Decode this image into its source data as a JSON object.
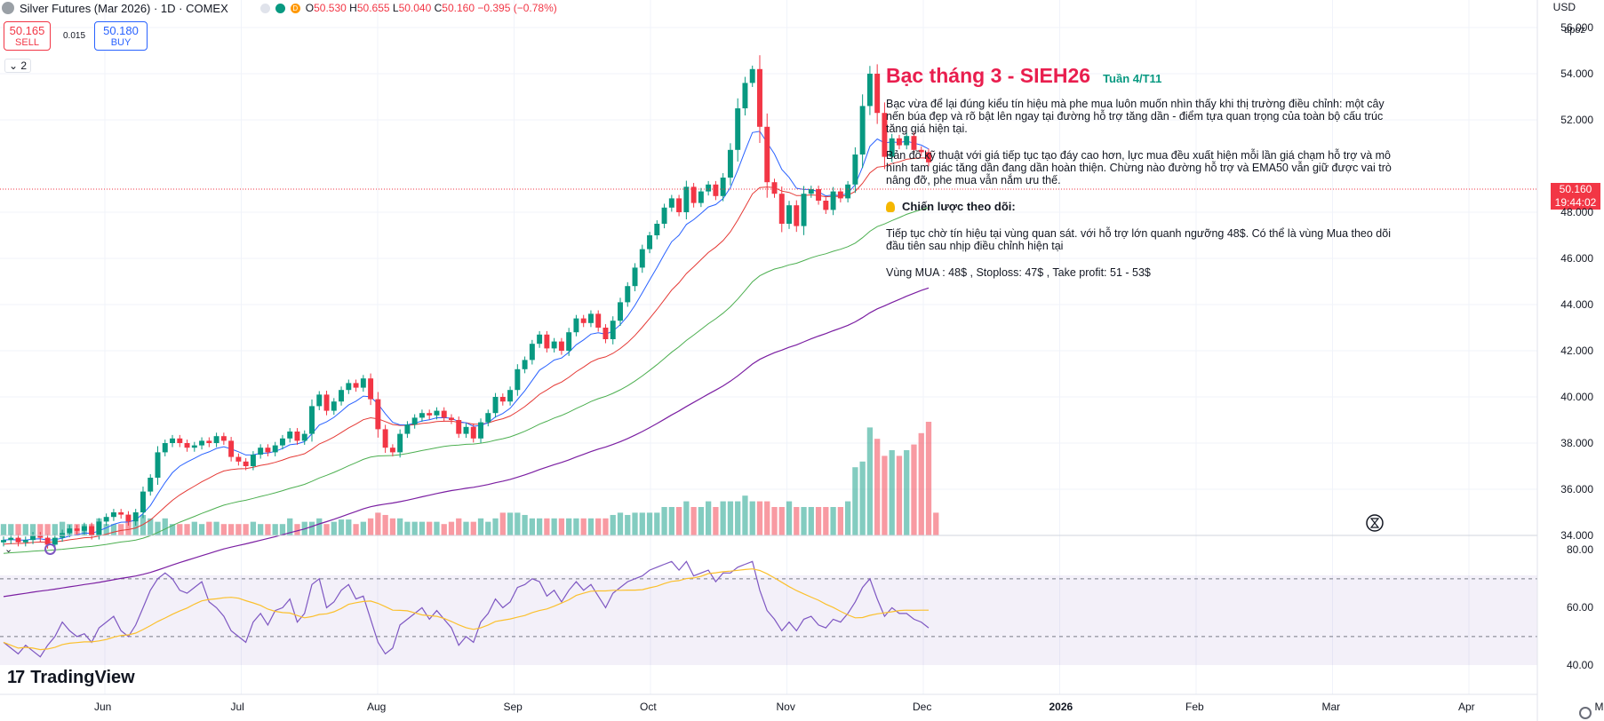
{
  "header": {
    "symbol_title": "Silver Futures (Mar 2026) · 1D · COMEX",
    "status_d": "D",
    "ohlc": {
      "o_label": "O",
      "o": "50.530",
      "h_label": "H",
      "h": "50.655",
      "l_label": "L",
      "l": "50.040",
      "c_label": "C",
      "c": "50.160",
      "change": "−0.395 (−0.78%)"
    }
  },
  "trade": {
    "sell_price": "50.165",
    "sell_label": "SELL",
    "spread": "0.015",
    "buy_price": "50.180",
    "buy_label": "BUY"
  },
  "collapse_label": "2",
  "currency": "USD",
  "scale_mode": "apoz",
  "price_axis": [
    "56.000",
    "54.000",
    "52.000",
    "48.000",
    "46.000",
    "44.000",
    "42.000",
    "40.000",
    "38.000",
    "36.000",
    "34.000"
  ],
  "rsi_axis": [
    "80.00",
    "60.00",
    "40.00"
  ],
  "time_axis": [
    "Jun",
    "Jul",
    "Aug",
    "Sep",
    "Oct",
    "Nov",
    "Dec",
    "2026",
    "Feb",
    "Mar",
    "Apr",
    "May"
  ],
  "last_price": {
    "price": "50.160",
    "countdown": "19:44:02"
  },
  "note": {
    "title": "Bạc tháng 3 - SIEH26",
    "week": "Tuần 4/T11",
    "p1": "Bạc vừa để lại đúng kiểu tín hiệu mà phe mua luôn muốn nhìn thấy khi thị trường điều chỉnh: một cây nến búa đẹp và rõ bật lên ngay tại đường hỗ trợ tăng dần - điểm tựa quan trọng của toàn bộ cấu trúc tăng giá hiện tại.",
    "p2": "Bản đồ kỹ thuật với giá tiếp tục tạo đáy cao hơn, lực mua đều xuất hiện mỗi lần giá chạm hỗ trợ và mô hình tam giác tăng dần đang dần hoàn thiện. Chừng nào đường hỗ trợ và EMA50 vẫn giữ được vai trò nâng đỡ, phe mua vẫn nắm ưu thế.",
    "strategy": "Chiến lược theo dõi:",
    "p3": "Tiếp tục chờ tín hiệu tại vùng quan sát. với hỗ trợ lớn quanh ngưỡng 48$. Có thể là vùng Mua theo dõi đầu tiên sau nhịp điều chỉnh hiện tại",
    "p4": "Vùng MUA : 48$ , Stoploss: 47$ , Take profit: 51 - 53$"
  },
  "brand": "TradingView",
  "colors": {
    "up": "#089981",
    "down": "#f23645",
    "ema_fast": "#2962ff",
    "ema_mid": "#e53935",
    "ema_slow": "#4caf50",
    "ema_long": "#7b1fa2",
    "rsi": "#7e57c2",
    "rsi_ma": "#fbc02d"
  },
  "chart_data": {
    "type": "candlestick",
    "title": "Silver Futures (Mar 2026) 1D COMEX",
    "ylim": [
      34,
      56.5
    ],
    "rsi_ylim": [
      30,
      85
    ],
    "rsi_levels": [
      70,
      50,
      30
    ],
    "closes": [
      33.8,
      33.9,
      33.7,
      33.8,
      34.0,
      33.9,
      33.6,
      33.9,
      34.1,
      34.3,
      34.2,
      34.4,
      34.0,
      34.6,
      34.8,
      35.0,
      34.9,
      34.6,
      35.0,
      35.9,
      36.5,
      37.6,
      38.0,
      38.2,
      38.0,
      37.8,
      37.9,
      38.1,
      38.0,
      38.3,
      38.1,
      37.4,
      37.2,
      37.0,
      37.5,
      37.8,
      37.6,
      37.9,
      38.2,
      38.5,
      38.1,
      38.4,
      39.6,
      40.1,
      39.4,
      39.8,
      40.3,
      40.6,
      40.4,
      40.8,
      39.9,
      38.6,
      37.8,
      37.6,
      38.4,
      38.8,
      39.1,
      39.3,
      39.2,
      39.4,
      39.1,
      39.0,
      38.4,
      38.7,
      38.2,
      38.9,
      39.3,
      40.0,
      39.8,
      40.3,
      41.2,
      41.6,
      42.3,
      42.7,
      42.1,
      42.4,
      42.0,
      42.8,
      43.4,
      43.2,
      43.6,
      43.0,
      42.5,
      43.3,
      44.1,
      44.8,
      45.6,
      46.4,
      47.0,
      47.5,
      48.2,
      48.6,
      48.0,
      49.1,
      48.4,
      48.9,
      49.2,
      48.7,
      49.5,
      50.7,
      52.5,
      53.6,
      54.2,
      51.7,
      49.3,
      48.8,
      47.5,
      48.3,
      47.4,
      48.8,
      49.0,
      48.5,
      48.1,
      48.9,
      48.6,
      49.2,
      50.5,
      52.6,
      54.0,
      52.3,
      50.4,
      51.2,
      50.9,
      51.3,
      50.7,
      50.6,
      50.16
    ],
    "volumes": [
      0.1,
      0.1,
      0.1,
      0.1,
      0.1,
      0.1,
      0.1,
      0.1,
      0.12,
      0.1,
      0.1,
      0.1,
      0.1,
      0.15,
      0.1,
      0.1,
      0.1,
      0.12,
      0.12,
      0.18,
      0.15,
      0.12,
      0.15,
      0.1,
      0.1,
      0.1,
      0.12,
      0.1,
      0.12,
      0.12,
      0.1,
      0.1,
      0.1,
      0.1,
      0.12,
      0.1,
      0.1,
      0.1,
      0.1,
      0.15,
      0.1,
      0.12,
      0.12,
      0.15,
      0.1,
      0.12,
      0.14,
      0.14,
      0.1,
      0.12,
      0.15,
      0.2,
      0.18,
      0.15,
      0.15,
      0.12,
      0.12,
      0.12,
      0.12,
      0.12,
      0.1,
      0.12,
      0.15,
      0.12,
      0.12,
      0.15,
      0.12,
      0.15,
      0.2,
      0.2,
      0.2,
      0.18,
      0.15,
      0.15,
      0.15,
      0.15,
      0.15,
      0.15,
      0.15,
      0.15,
      0.15,
      0.15,
      0.15,
      0.18,
      0.2,
      0.18,
      0.2,
      0.2,
      0.2,
      0.2,
      0.25,
      0.25,
      0.25,
      0.3,
      0.25,
      0.25,
      0.3,
      0.25,
      0.3,
      0.3,
      0.3,
      0.35,
      0.3,
      0.3,
      0.3,
      0.25,
      0.25,
      0.3,
      0.25,
      0.25,
      0.25,
      0.25,
      0.25,
      0.25,
      0.25,
      0.3,
      0.6,
      0.65,
      0.95,
      0.85,
      0.7,
      0.75,
      0.7,
      0.75,
      0.8,
      0.9,
      1.0,
      0.2
    ],
    "rsi": [
      48,
      46,
      44,
      47,
      45,
      43,
      47,
      50,
      55,
      52,
      50,
      51,
      48,
      53,
      55,
      57,
      52,
      50,
      54,
      60,
      66,
      70,
      72,
      70,
      66,
      65,
      67,
      69,
      62,
      60,
      57,
      52,
      50,
      48,
      55,
      58,
      54,
      59,
      60,
      63,
      55,
      58,
      68,
      70,
      60,
      62,
      66,
      68,
      63,
      64,
      56,
      48,
      44,
      46,
      54,
      56,
      58,
      60,
      56,
      59,
      56,
      53,
      47,
      50,
      48,
      55,
      58,
      63,
      60,
      62,
      67,
      68,
      70,
      69,
      64,
      66,
      62,
      66,
      69,
      66,
      68,
      64,
      60,
      65,
      67,
      69,
      70,
      71,
      73,
      74,
      75,
      76,
      73,
      76,
      71,
      72,
      73,
      69,
      72,
      72,
      74,
      75,
      76,
      66,
      59,
      56,
      52,
      55,
      52,
      56,
      57,
      54,
      53,
      56,
      55,
      58,
      62,
      67,
      70,
      63,
      57,
      60,
      58,
      58,
      56,
      55,
      53
    ]
  }
}
